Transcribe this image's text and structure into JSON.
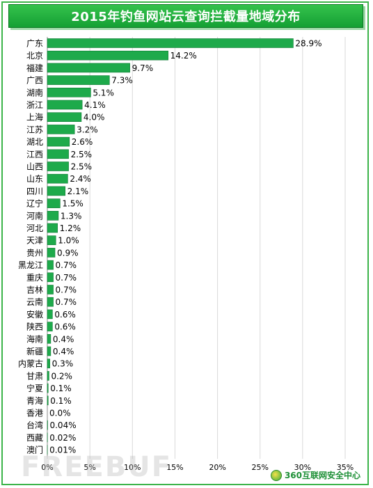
{
  "chart_data": {
    "type": "bar",
    "orientation": "horizontal",
    "title": "2015年钓鱼网站云查询拦截量地域分布",
    "categories": [
      "广东",
      "北京",
      "福建",
      "广西",
      "湖南",
      "浙江",
      "上海",
      "江苏",
      "湖北",
      "江西",
      "山西",
      "山东",
      "四川",
      "辽宁",
      "河南",
      "河北",
      "天津",
      "贵州",
      "黑龙江",
      "重庆",
      "吉林",
      "云南",
      "安徽",
      "陕西",
      "海南",
      "新疆",
      "内蒙古",
      "甘肃",
      "宁夏",
      "青海",
      "香港",
      "台湾",
      "西藏",
      "澳门"
    ],
    "values": [
      28.9,
      14.2,
      9.7,
      7.3,
      5.1,
      4.1,
      4.0,
      3.2,
      2.6,
      2.5,
      2.5,
      2.4,
      2.1,
      1.5,
      1.3,
      1.2,
      1.0,
      0.9,
      0.7,
      0.7,
      0.7,
      0.7,
      0.6,
      0.6,
      0.4,
      0.4,
      0.3,
      0.2,
      0.1,
      0.1,
      0.0,
      0.04,
      0.02,
      0.01
    ],
    "data_labels": [
      "28.9%",
      "14.2%",
      "9.7%",
      "7.3%",
      "5.1%",
      "4.1%",
      "4.0%",
      "3.2%",
      "2.6%",
      "2.5%",
      "2.5%",
      "2.4%",
      "2.1%",
      "1.5%",
      "1.3%",
      "1.2%",
      "1.0%",
      "0.9%",
      "0.7%",
      "0.7%",
      "0.7%",
      "0.7%",
      "0.6%",
      "0.6%",
      "0.4%",
      "0.4%",
      "0.3%",
      "0.2%",
      "0.1%",
      "0.1%",
      "0.0%",
      "0.04%",
      "0.02%",
      "0.01%"
    ],
    "xlim": [
      0,
      35
    ],
    "xticks": [
      0,
      5,
      10,
      15,
      20,
      25,
      30,
      35
    ],
    "xtick_labels": [
      "0%",
      "5%",
      "10%",
      "15%",
      "20%",
      "25%",
      "30%",
      "35%"
    ],
    "xlabel": "",
    "ylabel": "",
    "grid": true,
    "legend": "none",
    "bar_color": "#1eaa4b",
    "bar_border_color": "#0e7a33",
    "grid_color": "#d9d9d9"
  },
  "watermark": "FREEBUF",
  "brand": "360互联网安全中心",
  "colors": {
    "frame": "#3cb44a",
    "title_bg": "#1aa53a",
    "title_text": "#ffffff"
  }
}
